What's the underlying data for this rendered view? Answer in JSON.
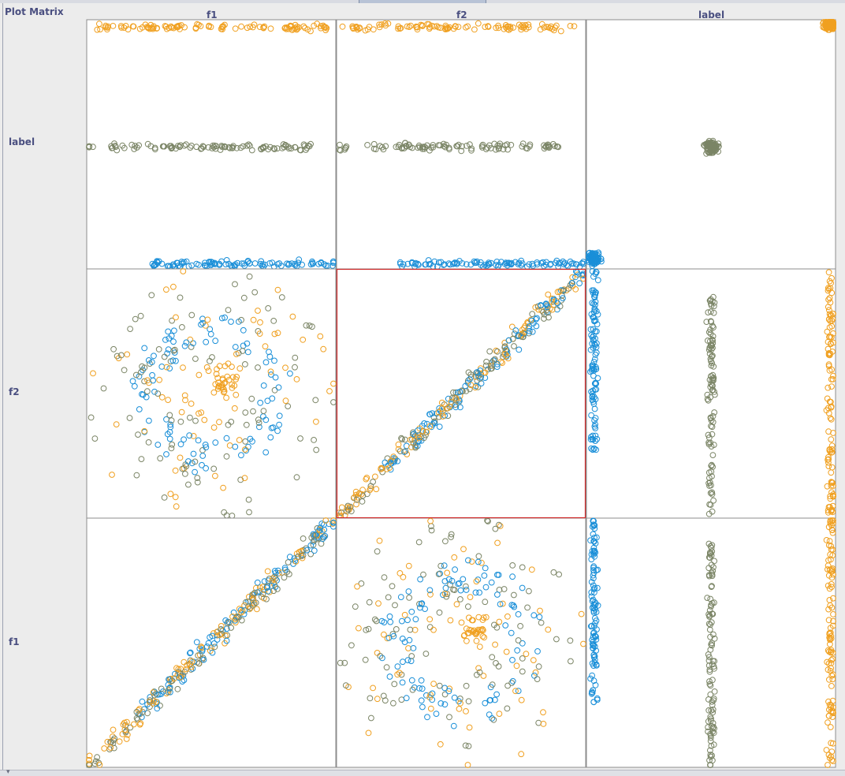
{
  "window": {
    "title": "Plot Matrix"
  },
  "colors": {
    "orange": "#f0a020",
    "olive": "#7b8566",
    "blue": "#1a8fd8",
    "selected_border": "#d02a2a"
  },
  "chart_data": {
    "type": "scatter",
    "matrix": {
      "columns": [
        "f1",
        "f2",
        "label"
      ],
      "rows": [
        "label",
        "f2",
        "f1"
      ],
      "selected_cell": {
        "row": "f2",
        "column": "f2"
      },
      "class_colors": [
        "orange",
        "olive",
        "blue"
      ],
      "marker": "open-circle",
      "grid": false,
      "cells": [
        {
          "row": "label",
          "column": "f1",
          "kind": "class-strip-vs-numeric"
        },
        {
          "row": "label",
          "column": "f2",
          "kind": "class-strip-vs-numeric"
        },
        {
          "row": "label",
          "column": "label",
          "kind": "class-vs-class"
        },
        {
          "row": "f2",
          "column": "f1",
          "kind": "ring-scatter"
        },
        {
          "row": "f2",
          "column": "f2",
          "kind": "identity-diagonal"
        },
        {
          "row": "f2",
          "column": "label",
          "kind": "numeric-vs-class-strip"
        },
        {
          "row": "f1",
          "column": "f1",
          "kind": "identity-diagonal"
        },
        {
          "row": "f1",
          "column": "f2",
          "kind": "ring-scatter"
        },
        {
          "row": "f1",
          "column": "label",
          "kind": "numeric-vs-class-strip"
        }
      ]
    }
  }
}
